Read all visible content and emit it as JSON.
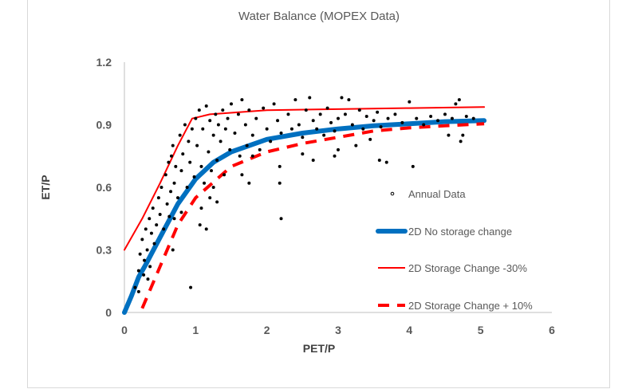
{
  "chart_data": {
    "type": "scatter",
    "title": "Water Balance (MOPEX Data)",
    "xlabel": "PET/P",
    "ylabel": "ET/P",
    "xlim": [
      0,
      6
    ],
    "ylim": [
      0,
      1.2
    ],
    "x_ticks": [
      "0",
      "1",
      "2",
      "3",
      "4",
      "5",
      "6"
    ],
    "y_ticks": [
      "0",
      "0.3",
      "0.6",
      "0.9",
      "1.2"
    ],
    "grid": false,
    "legend_placement": "right-inside",
    "series": [
      {
        "name": "Annual Data",
        "kind": "scatter",
        "color": "#000000",
        "points": [
          [
            0.15,
            0.12
          ],
          [
            0.2,
            0.2
          ],
          [
            0.22,
            0.28
          ],
          [
            0.25,
            0.35
          ],
          [
            0.28,
            0.25
          ],
          [
            0.3,
            0.4
          ],
          [
            0.32,
            0.3
          ],
          [
            0.35,
            0.45
          ],
          [
            0.38,
            0.38
          ],
          [
            0.4,
            0.5
          ],
          [
            0.42,
            0.33
          ],
          [
            0.45,
            0.42
          ],
          [
            0.48,
            0.55
          ],
          [
            0.5,
            0.47
          ],
          [
            0.2,
            0.1
          ],
          [
            0.33,
            0.16
          ],
          [
            0.36,
            0.22
          ],
          [
            0.27,
            0.18
          ],
          [
            0.52,
            0.6
          ],
          [
            0.55,
            0.4
          ],
          [
            0.58,
            0.66
          ],
          [
            0.6,
            0.52
          ],
          [
            0.62,
            0.72
          ],
          [
            0.65,
            0.58
          ],
          [
            0.68,
            0.8
          ],
          [
            0.7,
            0.62
          ],
          [
            0.72,
            0.7
          ],
          [
            0.75,
            0.55
          ],
          [
            0.78,
            0.85
          ],
          [
            0.8,
            0.68
          ],
          [
            0.82,
            0.76
          ],
          [
            0.85,
            0.9
          ],
          [
            0.88,
            0.6
          ],
          [
            0.9,
            0.82
          ],
          [
            0.92,
            0.72
          ],
          [
            0.95,
            0.88
          ],
          [
            0.98,
            0.65
          ],
          [
            1.0,
            0.93
          ],
          [
            0.7,
            0.45
          ],
          [
            0.8,
            0.48
          ],
          [
            0.93,
            0.12
          ],
          [
            0.68,
            0.3
          ],
          [
            0.66,
            0.75
          ],
          [
            0.63,
            0.46
          ],
          [
            1.02,
            0.8
          ],
          [
            1.05,
            0.97
          ],
          [
            1.08,
            0.7
          ],
          [
            1.1,
            0.88
          ],
          [
            1.12,
            0.62
          ],
          [
            1.15,
            0.99
          ],
          [
            1.18,
            0.77
          ],
          [
            1.2,
            0.92
          ],
          [
            1.22,
            0.68
          ],
          [
            1.25,
            0.85
          ],
          [
            1.28,
            0.95
          ],
          [
            1.3,
            0.73
          ],
          [
            1.32,
            0.9
          ],
          [
            1.35,
            0.82
          ],
          [
            1.38,
            0.97
          ],
          [
            1.4,
            0.66
          ],
          [
            1.42,
            0.88
          ],
          [
            1.45,
            0.93
          ],
          [
            1.48,
            0.78
          ],
          [
            1.5,
            1.0
          ],
          [
            1.06,
            0.42
          ],
          [
            1.15,
            0.4
          ],
          [
            1.08,
            0.5
          ],
          [
            1.2,
            0.55
          ],
          [
            1.25,
            0.6
          ],
          [
            1.3,
            0.53
          ],
          [
            1.55,
            0.86
          ],
          [
            1.6,
            0.95
          ],
          [
            1.62,
            0.75
          ],
          [
            1.65,
            1.02
          ],
          [
            1.7,
            0.9
          ],
          [
            1.72,
            0.8
          ],
          [
            1.75,
            0.97
          ],
          [
            1.8,
            0.85
          ],
          [
            1.85,
            0.93
          ],
          [
            1.9,
            0.78
          ],
          [
            1.95,
            0.98
          ],
          [
            2.0,
            0.88
          ],
          [
            2.05,
            0.82
          ],
          [
            2.1,
            1.0
          ],
          [
            2.15,
            0.92
          ],
          [
            2.2,
            0.86
          ],
          [
            2.2,
            0.45
          ],
          [
            2.18,
            0.62
          ],
          [
            2.18,
            0.7
          ],
          [
            1.75,
            0.62
          ],
          [
            1.65,
            0.66
          ],
          [
            1.8,
            0.75
          ],
          [
            2.3,
            0.95
          ],
          [
            2.35,
            0.88
          ],
          [
            2.4,
            1.02
          ],
          [
            2.45,
            0.9
          ],
          [
            2.5,
            0.84
          ],
          [
            2.55,
            0.97
          ],
          [
            2.6,
            1.03
          ],
          [
            2.65,
            0.92
          ],
          [
            2.7,
            0.88
          ],
          [
            2.75,
            0.95
          ],
          [
            2.8,
            0.85
          ],
          [
            2.85,
            0.98
          ],
          [
            2.9,
            0.91
          ],
          [
            2.95,
            0.87
          ],
          [
            2.65,
            0.73
          ],
          [
            2.5,
            0.76
          ],
          [
            2.95,
            0.75
          ],
          [
            3.0,
            0.93
          ],
          [
            3.05,
            1.03
          ],
          [
            3.1,
            0.95
          ],
          [
            3.15,
            1.02
          ],
          [
            3.2,
            0.9
          ],
          [
            3.3,
            0.97
          ],
          [
            3.35,
            0.88
          ],
          [
            3.4,
            0.94
          ],
          [
            3.5,
            0.92
          ],
          [
            3.55,
            0.96
          ],
          [
            3.6,
            0.89
          ],
          [
            3.58,
            0.73
          ],
          [
            3.68,
            0.72
          ],
          [
            3.7,
            0.93
          ],
          [
            3.8,
            0.95
          ],
          [
            3.9,
            0.91
          ],
          [
            4.0,
            1.01
          ],
          [
            4.05,
            0.7
          ],
          [
            4.1,
            0.93
          ],
          [
            4.2,
            0.9
          ],
          [
            4.3,
            0.94
          ],
          [
            4.4,
            0.92
          ],
          [
            4.5,
            0.95
          ],
          [
            4.55,
            0.85
          ],
          [
            4.6,
            0.93
          ],
          [
            4.65,
            1.0
          ],
          [
            4.7,
            1.02
          ],
          [
            4.72,
            0.82
          ],
          [
            4.75,
            0.85
          ],
          [
            4.8,
            0.94
          ],
          [
            4.9,
            0.93
          ],
          [
            3.0,
            0.78
          ],
          [
            3.25,
            0.8
          ],
          [
            3.45,
            0.83
          ]
        ]
      },
      {
        "name": "2D No storage change",
        "kind": "line",
        "color": "#0070C0",
        "style": "thick",
        "points": [
          [
            0,
            0
          ],
          [
            0.1,
            0.08
          ],
          [
            0.2,
            0.17
          ],
          [
            0.3,
            0.23
          ],
          [
            0.5,
            0.36
          ],
          [
            0.75,
            0.52
          ],
          [
            1,
            0.64
          ],
          [
            1.25,
            0.72
          ],
          [
            1.5,
            0.77
          ],
          [
            2,
            0.83
          ],
          [
            2.5,
            0.86
          ],
          [
            3,
            0.88
          ],
          [
            3.5,
            0.895
          ],
          [
            4,
            0.905
          ],
          [
            4.5,
            0.915
          ],
          [
            5.05,
            0.92
          ]
        ]
      },
      {
        "name": "2D Storage Change -30%",
        "kind": "line",
        "color": "#FF0000",
        "style": "solid",
        "points": [
          [
            0,
            0.3
          ],
          [
            0.25,
            0.45
          ],
          [
            0.5,
            0.62
          ],
          [
            0.75,
            0.8
          ],
          [
            0.95,
            0.93
          ],
          [
            1.2,
            0.95
          ],
          [
            2,
            0.97
          ],
          [
            3,
            0.975
          ],
          [
            4,
            0.98
          ],
          [
            5.05,
            0.985
          ]
        ]
      },
      {
        "name": "2D Storage Change + 10%",
        "kind": "line",
        "color": "#FF0000",
        "style": "dashed",
        "points": [
          [
            0.25,
            0.02
          ],
          [
            0.5,
            0.22
          ],
          [
            0.75,
            0.42
          ],
          [
            1,
            0.55
          ],
          [
            1.5,
            0.7
          ],
          [
            2,
            0.77
          ],
          [
            2.5,
            0.81
          ],
          [
            3,
            0.84
          ],
          [
            3.5,
            0.87
          ],
          [
            4,
            0.885
          ],
          [
            4.5,
            0.895
          ],
          [
            5.05,
            0.905
          ]
        ]
      }
    ]
  }
}
